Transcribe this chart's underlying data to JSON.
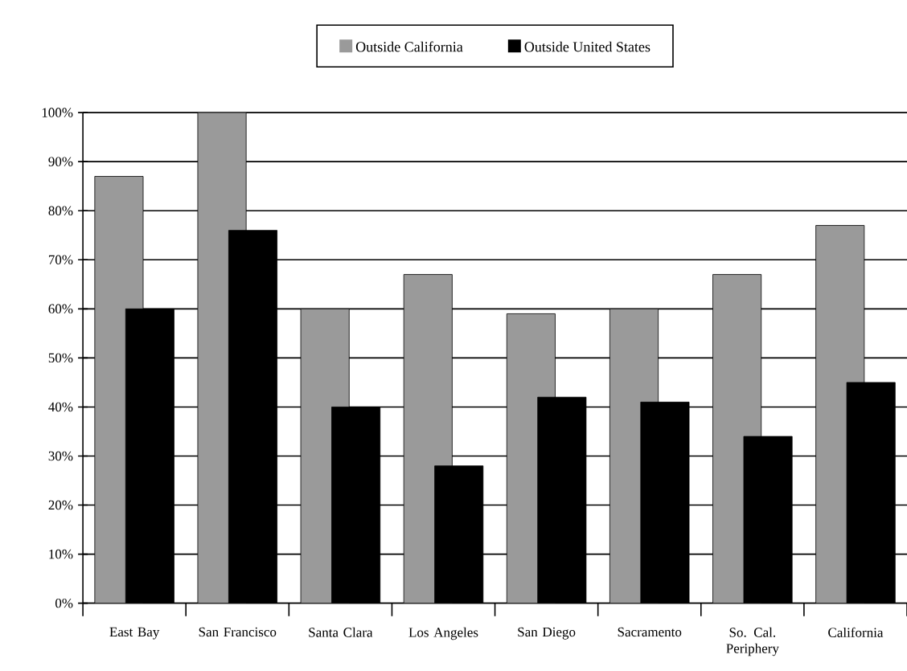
{
  "chart_data": {
    "type": "bar",
    "categories": [
      "East Bay",
      "San Francisco",
      "Santa Clara",
      "Los Angeles",
      "San Diego",
      "Sacramento",
      "So. Cal. Periphery",
      "California"
    ],
    "series": [
      {
        "name": "Outside California",
        "color": "#9a9a9a",
        "values": [
          87,
          100,
          60,
          67,
          59,
          60,
          67,
          77
        ]
      },
      {
        "name": "Outside United States",
        "color": "#000000",
        "values": [
          60,
          76,
          40,
          28,
          42,
          41,
          34,
          45
        ]
      }
    ],
    "ylim": [
      0,
      100
    ],
    "yticks": [
      {
        "value": 0,
        "label": "0%"
      },
      {
        "value": 10,
        "label": "10%"
      },
      {
        "value": 20,
        "label": "20%"
      },
      {
        "value": 30,
        "label": "30%"
      },
      {
        "value": 40,
        "label": "40%"
      },
      {
        "value": 50,
        "label": "50%"
      },
      {
        "value": 60,
        "label": "60%"
      },
      {
        "value": 70,
        "label": "70%"
      },
      {
        "value": 80,
        "label": "80%"
      },
      {
        "value": 90,
        "label": "90%"
      },
      {
        "value": 100,
        "label": "100%"
      }
    ],
    "grid": "y",
    "legend": "top"
  }
}
